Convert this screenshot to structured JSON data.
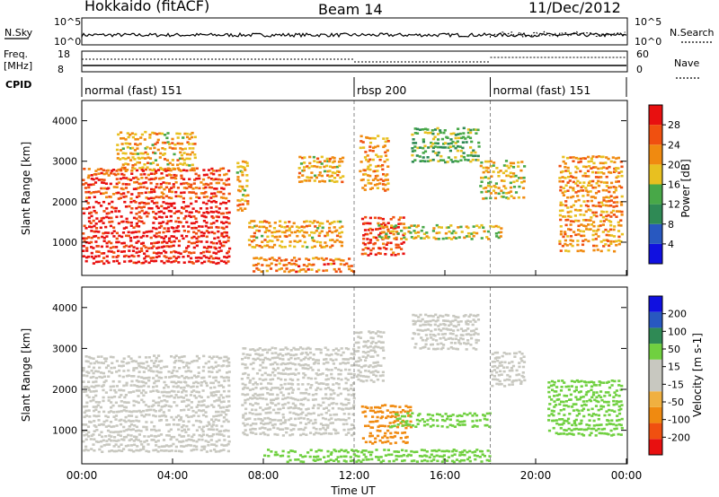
{
  "header": {
    "station": "Hokkaido (fitACF)",
    "beam": "Beam 14",
    "date": "11/Dec/2012"
  },
  "summary_panels": {
    "nsky_label": "N.Sky",
    "nsearch_label": "N.Search",
    "top_ticks": [
      "10^5",
      "10^0"
    ],
    "freq_label_1": "Freq.",
    "freq_label_2": "[MHz]",
    "freq_ticks": [
      "18",
      "8"
    ],
    "nave_label": "Nave",
    "nave_ticks": [
      "60",
      "0"
    ],
    "cpid_label": "CPID"
  },
  "cpid_segments": [
    {
      "label": "normal (fast) 151",
      "start_h": 0,
      "end_h": 12
    },
    {
      "label": "rbsp 200",
      "start_h": 12,
      "end_h": 18
    },
    {
      "label": "normal (fast) 151",
      "start_h": 18,
      "end_h": 24
    }
  ],
  "colors": {
    "power_scale": [
      "#1010e0",
      "#2858c0",
      "#2f8a55",
      "#48a848",
      "#e8c020",
      "#f08a10",
      "#f05010",
      "#e81010"
    ],
    "velocity_scale": [
      "#e81010",
      "#f05010",
      "#f08a10",
      "#f0b040",
      "#c8c8c0",
      "#c8c8c0",
      "#70d040",
      "#2f8a55",
      "#2858c0",
      "#1010e0"
    ],
    "ground_scatter": "#bdbdb5"
  },
  "chart_data": [
    {
      "type": "heatmap",
      "title": "Beam 14",
      "xlabel": "Time UT",
      "ylabel": "Slant Range [km]",
      "x_ticks": [
        "00:00",
        "04:00",
        "08:00",
        "12:00",
        "16:00",
        "20:00",
        "00:00"
      ],
      "xlim_hours": [
        0,
        24
      ],
      "y_ticks": [
        "1000",
        "2000",
        "3000",
        "4000"
      ],
      "ylim_km": [
        180,
        4500
      ],
      "colorbar": {
        "label": "Power [dB]",
        "ticks": [
          "4",
          "8",
          "12",
          "16",
          "20",
          "24",
          "28"
        ],
        "range": [
          0,
          32
        ]
      },
      "regions": [
        {
          "t0": 0.0,
          "t1": 6.5,
          "r0": 500,
          "r1": 2100,
          "value": 30
        },
        {
          "t0": 0.0,
          "t1": 6.5,
          "r0": 2100,
          "r1": 2900,
          "value": 26
        },
        {
          "t0": 1.5,
          "t1": 5.0,
          "r0": 2800,
          "r1": 3800,
          "value": 20
        },
        {
          "t0": 6.8,
          "t1": 7.3,
          "r0": 1800,
          "r1": 3100,
          "value": 20
        },
        {
          "t0": 7.3,
          "t1": 11.5,
          "r0": 900,
          "r1": 1600,
          "value": 20
        },
        {
          "t0": 7.5,
          "t1": 12.0,
          "r0": 300,
          "r1": 700,
          "value": 24
        },
        {
          "t0": 9.5,
          "t1": 11.5,
          "r0": 2500,
          "r1": 3200,
          "value": 20
        },
        {
          "t0": 12.2,
          "t1": 13.5,
          "r0": 2300,
          "r1": 3700,
          "value": 22
        },
        {
          "t0": 12.3,
          "t1": 14.2,
          "r0": 700,
          "r1": 1700,
          "value": 28
        },
        {
          "t0": 13.0,
          "t1": 18.5,
          "r0": 1100,
          "r1": 1500,
          "value": 18
        },
        {
          "t0": 14.5,
          "t1": 17.5,
          "r0": 3000,
          "r1": 3900,
          "value": 14
        },
        {
          "t0": 17.5,
          "t1": 19.5,
          "r0": 2100,
          "r1": 3100,
          "value": 18
        },
        {
          "t0": 21.0,
          "t1": 23.8,
          "r0": 800,
          "r1": 3200,
          "value": 22
        }
      ]
    },
    {
      "type": "heatmap",
      "xlabel": "Time UT",
      "ylabel": "Slant Range [km]",
      "x_ticks": [
        "00:00",
        "04:00",
        "08:00",
        "12:00",
        "16:00",
        "20:00",
        "00:00"
      ],
      "xlim_hours": [
        0,
        24
      ],
      "y_ticks": [
        "1000",
        "2000",
        "3000",
        "4000"
      ],
      "ylim_km": [
        180,
        4500
      ],
      "colorbar": {
        "label": "Velocity [m s-1]",
        "ticks": [
          "200",
          "100",
          "50",
          "15",
          "-15",
          "-50",
          "-100",
          "-200"
        ]
      },
      "regions": [
        {
          "t0": 0.0,
          "t1": 6.5,
          "r0": 500,
          "r1": 2900,
          "value": 0
        },
        {
          "t0": 7.0,
          "t1": 12.0,
          "r0": 900,
          "r1": 3100,
          "value": 0
        },
        {
          "t0": 12.0,
          "t1": 13.3,
          "r0": 2200,
          "r1": 3500,
          "value": 0
        },
        {
          "t0": 12.3,
          "t1": 14.5,
          "r0": 700,
          "r1": 1700,
          "value": -60
        },
        {
          "t0": 13.5,
          "t1": 18.0,
          "r0": 1100,
          "r1": 1500,
          "value": 30
        },
        {
          "t0": 14.5,
          "t1": 17.5,
          "r0": 3000,
          "r1": 3900,
          "value": 0
        },
        {
          "t0": 18.0,
          "t1": 19.5,
          "r0": 2100,
          "r1": 3000,
          "value": 0
        },
        {
          "t0": 20.5,
          "t1": 23.8,
          "r0": 900,
          "r1": 2300,
          "value": 30
        },
        {
          "t0": 8.0,
          "t1": 18.0,
          "r0": 250,
          "r1": 600,
          "value": 40
        }
      ]
    }
  ]
}
